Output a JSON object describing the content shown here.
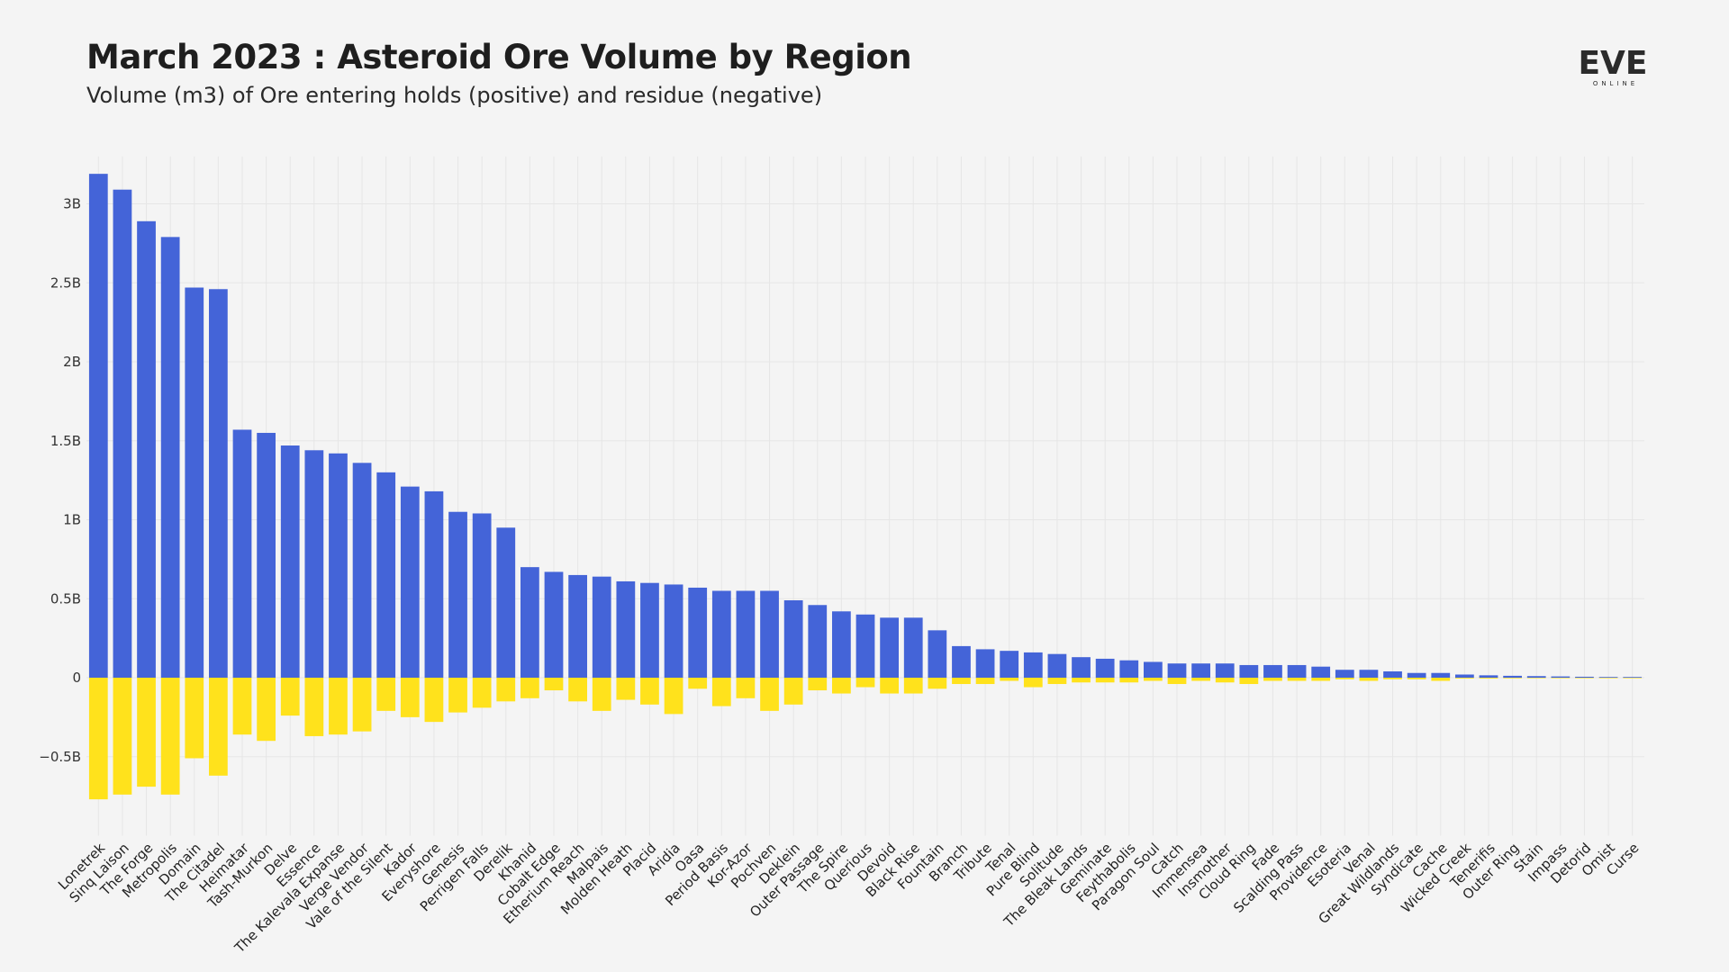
{
  "header": {
    "title": "March 2023 : Asteroid Ore Volume by Region",
    "subtitle": "Volume (m3) of Ore entering holds (positive) and residue (negative)"
  },
  "logo": {
    "word": "EVE",
    "sub": "ONLINE"
  },
  "colors": {
    "positive": "#4464d8",
    "negative": "#ffe21c",
    "grid": "#e6e6e6",
    "background": "#f4f4f4"
  },
  "chart_data": {
    "type": "bar",
    "title": "March 2023 : Asteroid Ore Volume by Region",
    "subtitle": "Volume (m3) of Ore entering holds (positive) and residue (negative)",
    "xlabel": "",
    "ylabel": "",
    "ylim": [
      -1.0,
      3.3
    ],
    "yticks": [
      -0.5,
      0,
      0.5,
      1,
      1.5,
      2,
      2.5,
      3
    ],
    "ytick_labels": [
      "−0.5B",
      "0",
      "0.5B",
      "1B",
      "1.5B",
      "2B",
      "2.5B",
      "3B"
    ],
    "grid": true,
    "categories": [
      "Lonetrek",
      "Sinq Laison",
      "The Forge",
      "Metropolis",
      "Domain",
      "The Citadel",
      "Heimatar",
      "Tash-Murkon",
      "Delve",
      "Essence",
      "The Kalevala Expanse",
      "Verge Vendor",
      "Vale of the Silent",
      "Kador",
      "Everyshore",
      "Genesis",
      "Perrigen Falls",
      "Derelik",
      "Khanid",
      "Cobalt Edge",
      "Etherium Reach",
      "Malpais",
      "Molden Heath",
      "Placid",
      "Aridia",
      "Oasa",
      "Period Basis",
      "Kor-Azor",
      "Pochven",
      "Deklein",
      "Outer Passage",
      "The Spire",
      "Querious",
      "Devoid",
      "Black Rise",
      "Fountain",
      "Branch",
      "Tribute",
      "Tenal",
      "Pure Blind",
      "Solitude",
      "The Bleak Lands",
      "Geminate",
      "Feythabolis",
      "Paragon Soul",
      "Catch",
      "Immensea",
      "Insmother",
      "Cloud Ring",
      "Fade",
      "Scalding Pass",
      "Providence",
      "Esoteria",
      "Venal",
      "Great Wildlands",
      "Syndicate",
      "Cache",
      "Wicked Creek",
      "Tenerifis",
      "Outer Ring",
      "Stain",
      "Impass",
      "Detorid",
      "Omist",
      "Curse"
    ],
    "series": [
      {
        "name": "Ore entering holds",
        "values": [
          3.19,
          3.09,
          2.89,
          2.79,
          2.47,
          2.46,
          1.57,
          1.55,
          1.47,
          1.44,
          1.42,
          1.36,
          1.3,
          1.21,
          1.18,
          1.05,
          1.04,
          0.95,
          0.7,
          0.67,
          0.65,
          0.64,
          0.61,
          0.6,
          0.59,
          0.57,
          0.55,
          0.55,
          0.55,
          0.49,
          0.46,
          0.42,
          0.4,
          0.38,
          0.38,
          0.3,
          0.2,
          0.18,
          0.17,
          0.16,
          0.15,
          0.13,
          0.12,
          0.11,
          0.1,
          0.09,
          0.09,
          0.09,
          0.08,
          0.08,
          0.08,
          0.07,
          0.05,
          0.05,
          0.04,
          0.03,
          0.03,
          0.02,
          0.015,
          0.012,
          0.01,
          0.008,
          0.006,
          0.004,
          0.003
        ]
      },
      {
        "name": "Residue",
        "values": [
          -0.77,
          -0.74,
          -0.69,
          -0.74,
          -0.51,
          -0.62,
          -0.36,
          -0.4,
          -0.24,
          -0.37,
          -0.36,
          -0.34,
          -0.21,
          -0.25,
          -0.28,
          -0.22,
          -0.19,
          -0.15,
          -0.13,
          -0.08,
          -0.15,
          -0.21,
          -0.14,
          -0.17,
          -0.23,
          -0.07,
          -0.18,
          -0.13,
          -0.21,
          -0.17,
          -0.08,
          -0.1,
          -0.06,
          -0.1,
          -0.1,
          -0.07,
          -0.04,
          -0.04,
          -0.02,
          -0.06,
          -0.04,
          -0.03,
          -0.03,
          -0.03,
          -0.02,
          -0.04,
          -0.02,
          -0.03,
          -0.04,
          -0.02,
          -0.02,
          -0.02,
          -0.01,
          -0.02,
          -0.01,
          -0.01,
          -0.02,
          -0.005,
          -0.005,
          -0.004,
          -0.003,
          -0.003,
          -0.002,
          -0.002,
          -0.002
        ]
      }
    ]
  }
}
